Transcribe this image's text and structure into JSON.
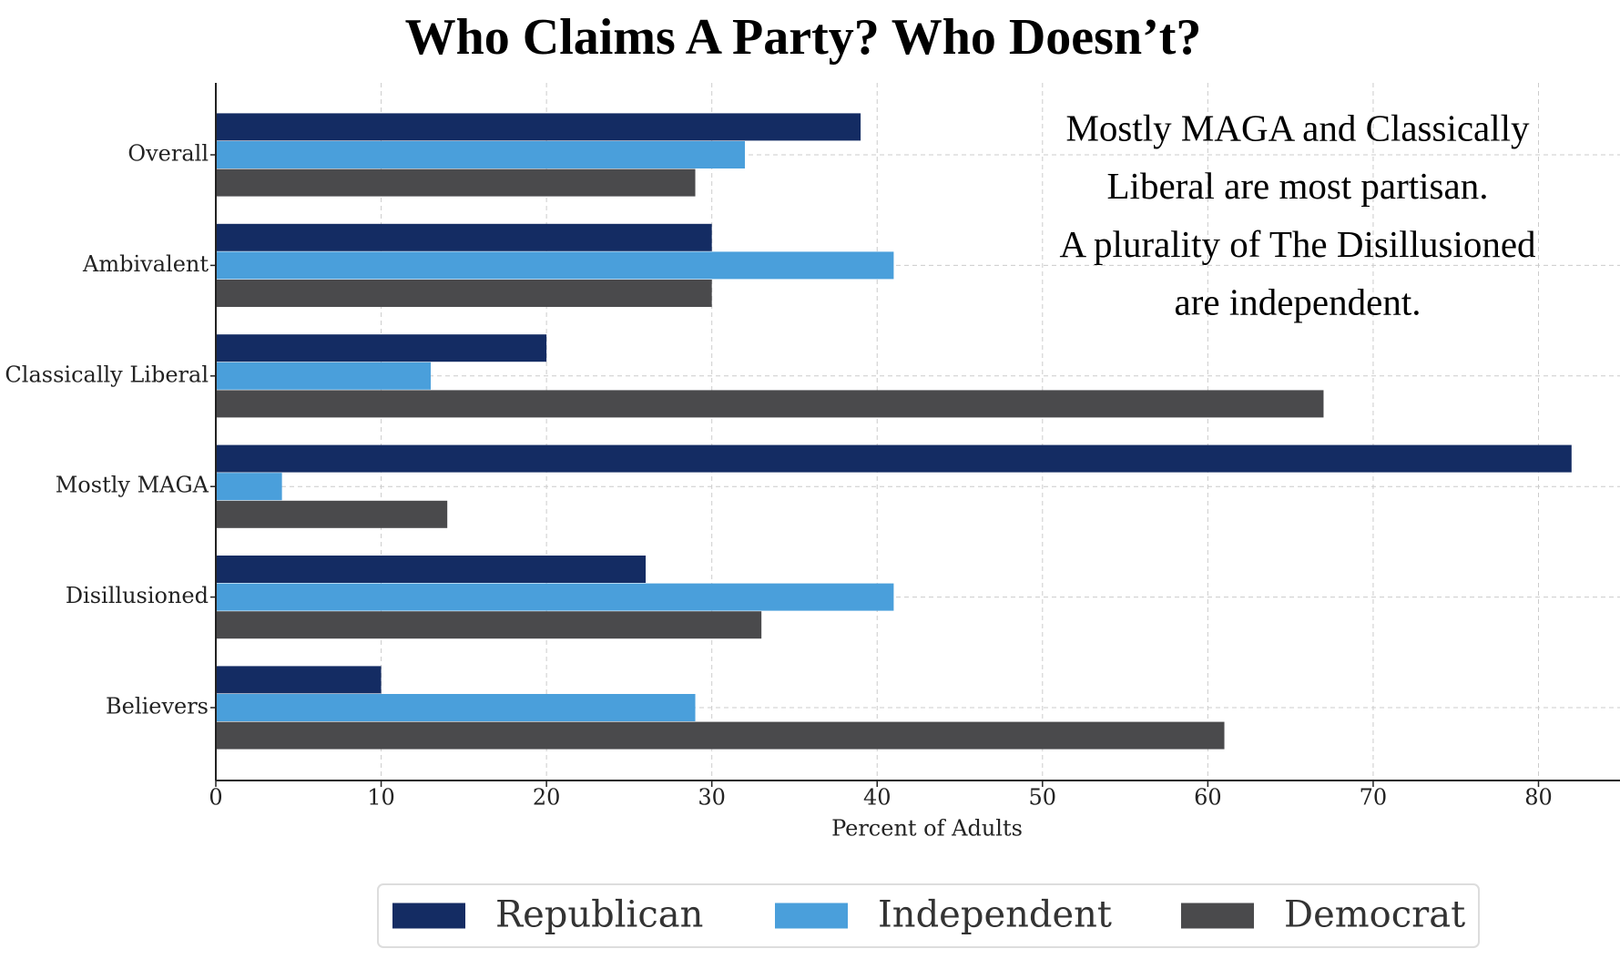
{
  "chart_data": {
    "type": "bar",
    "orientation": "horizontal",
    "title": "Who Claims A Party? Who Doesn’t?",
    "annotation": [
      "Mostly MAGA and Classically",
      "Liberal are most partisan.",
      "A plurality of The Disillusioned",
      "are independent."
    ],
    "x_label": "Percent of Adults",
    "categories": [
      "Overall",
      "Ambivalent",
      "Classically Liberal",
      "Mostly MAGA",
      "Disillusioned",
      "Believers"
    ],
    "series": [
      {
        "name": "Republican",
        "color": "#142c63",
        "values": [
          39,
          30,
          20,
          82,
          26,
          10
        ]
      },
      {
        "name": "Independent",
        "color": "#4a9fdb",
        "values": [
          32,
          41,
          13,
          4,
          41,
          29
        ]
      },
      {
        "name": "Democrat",
        "color": "#4a4a4c",
        "values": [
          29,
          30,
          67,
          14,
          33,
          61
        ]
      }
    ],
    "xlim": [
      0,
      85
    ],
    "xticks": [
      0,
      10,
      20,
      30,
      40,
      50,
      60,
      70,
      80
    ],
    "grid": true,
    "legend": "lower center"
  }
}
